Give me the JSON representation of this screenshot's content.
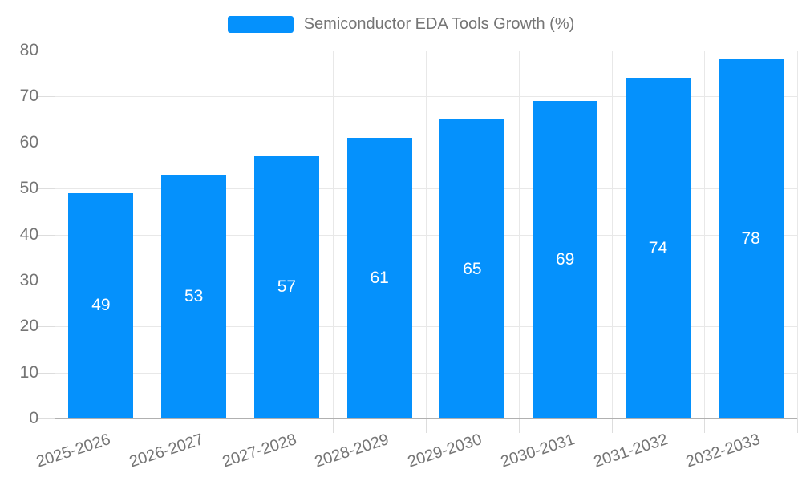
{
  "colors": {
    "bar": "#0591fc",
    "grid": "#e8e8e8",
    "axis": "#b0b0b0",
    "tick": "#dddddd",
    "axis_text": "#757575",
    "bar_label": "#ffffff",
    "background": "#ffffff"
  },
  "legend": {
    "items": [
      {
        "label": "Semiconductor EDA Tools Growth (%)",
        "color": "#0591fc"
      }
    ]
  },
  "chart_data": {
    "type": "bar",
    "title": "Semiconductor EDA Tools Growth (%)",
    "categories": [
      "2025-2026",
      "2026-2027",
      "2027-2028",
      "2028-2029",
      "2029-2030",
      "2030-2031",
      "2031-2032",
      "2032-2033"
    ],
    "series": [
      {
        "name": "Semiconductor EDA Tools Growth (%)",
        "values": [
          49,
          53,
          57,
          61,
          65,
          69,
          74,
          78
        ]
      }
    ],
    "values": [
      49,
      53,
      57,
      61,
      65,
      69,
      74,
      78
    ],
    "bar_labels": [
      "49",
      "53",
      "57",
      "61",
      "65",
      "69",
      "74",
      "78"
    ],
    "xlabel": "",
    "ylabel": "",
    "ylim": [
      0,
      80
    ],
    "ytick_step": 10,
    "yticks": [
      0,
      10,
      20,
      30,
      40,
      50,
      60,
      70,
      80
    ],
    "grid": true,
    "legend_position": "top-center",
    "bar_label_position": "inside-center",
    "x_tick_label_rotation_deg": 18
  }
}
